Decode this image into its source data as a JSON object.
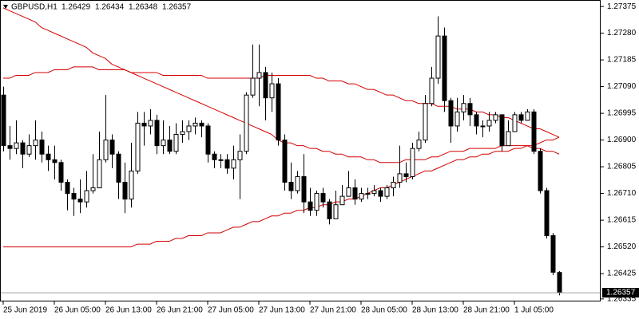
{
  "chart_data": {
    "type": "candlestick",
    "symbol": "GBPUSD,H1",
    "categories": [
      "25 Jun 2019",
      null,
      null,
      null,
      null,
      null,
      null,
      null,
      "26 Jun 05:00",
      null,
      null,
      null,
      null,
      null,
      null,
      null,
      "26 Jun 13:00",
      null,
      null,
      null,
      null,
      null,
      null,
      null,
      "26 Jun 21:00",
      null,
      null,
      null,
      null,
      null,
      null,
      null,
      "27 Jun 05:00",
      null,
      null,
      null,
      null,
      null,
      null,
      null,
      "27 Jun 13:00",
      null,
      null,
      null,
      null,
      null,
      null,
      null,
      "27 Jun 21:00",
      null,
      null,
      null,
      null,
      null,
      null,
      null,
      "28 Jun 05:00",
      null,
      null,
      null,
      null,
      null,
      null,
      null,
      "28 Jun 13:00",
      null,
      null,
      null,
      null,
      null,
      null,
      null,
      "28 Jun 21:00",
      null,
      null,
      null,
      null,
      null,
      null,
      null,
      "1 Jul 05:00",
      null,
      null,
      null,
      null,
      null,
      null,
      null
    ],
    "ohlc": {
      "open": [
        1.2706,
        1.2688,
        1.2687,
        1.2689,
        1.2685,
        1.2688,
        1.269,
        1.2685,
        1.2683,
        1.2682,
        1.2675,
        1.2671,
        1.2669,
        1.2668,
        1.2672,
        1.2673,
        1.2683,
        1.269,
        1.2685,
        1.2675,
        1.2669,
        1.2679,
        1.2696,
        1.2695,
        1.2697,
        1.2688,
        1.269,
        1.2686,
        1.2692,
        1.2693,
        1.2695,
        1.2696,
        1.2695,
        1.2685,
        1.2683,
        1.2683,
        1.268,
        1.2683,
        1.2686,
        1.2706,
        1.2712,
        1.2714,
        1.2705,
        1.271,
        1.269,
        1.2675,
        1.2672,
        1.2677,
        1.2668,
        1.2665,
        1.2671,
        1.2668,
        1.2662,
        1.2667,
        1.267,
        1.2673,
        1.2669,
        1.2671,
        1.2671,
        1.2672,
        1.267,
        1.2673,
        1.2675,
        1.2678,
        1.2677,
        1.2687,
        1.269,
        1.2703,
        1.2712,
        1.2727,
        1.2704,
        1.2695,
        1.27,
        1.2703,
        1.2699,
        1.2695,
        1.2695,
        1.2697,
        1.2699,
        1.2688,
        1.2693,
        1.2699,
        1.2697,
        1.27,
        1.2686,
        1.2672,
        1.2656,
        1.26429
      ],
      "high": [
        1.2709,
        1.2695,
        1.2697,
        1.269,
        1.2692,
        1.2697,
        1.2693,
        1.2688,
        1.2688,
        1.2683,
        1.2676,
        1.2673,
        1.2676,
        1.2679,
        1.2685,
        1.2693,
        1.2706,
        1.2692,
        1.2686,
        1.2682,
        1.2689,
        1.27,
        1.27,
        1.2701,
        1.2699,
        1.2697,
        1.2695,
        1.2696,
        1.2697,
        1.2697,
        1.2698,
        1.2697,
        1.2696,
        1.2686,
        1.2685,
        1.2685,
        1.2688,
        1.2692,
        1.2707,
        1.2724,
        1.2724,
        1.2716,
        1.2714,
        1.2712,
        1.2692,
        1.2682,
        1.2679,
        1.2685,
        1.2673,
        1.2672,
        1.2673,
        1.2669,
        1.2672,
        1.2674,
        1.2679,
        1.2676,
        1.2673,
        1.2673,
        1.2674,
        1.2673,
        1.2674,
        1.2677,
        1.2688,
        1.2682,
        1.2689,
        1.2693,
        1.2706,
        1.2716,
        1.2734,
        1.273,
        1.2705,
        1.2705,
        1.2706,
        1.2705,
        1.27,
        1.2697,
        1.27,
        1.27,
        1.2699,
        1.2697,
        1.27,
        1.27,
        1.2701,
        1.2701,
        1.2687,
        1.2673,
        1.2657,
        1.26434
      ],
      "low": [
        1.2686,
        1.2683,
        1.2685,
        1.268,
        1.2684,
        1.2683,
        1.2682,
        1.2679,
        1.2676,
        1.2672,
        1.2665,
        1.2663,
        1.2664,
        1.2666,
        1.2671,
        1.2673,
        1.2682,
        1.268,
        1.2669,
        1.2664,
        1.2666,
        1.2678,
        1.2688,
        1.2692,
        1.2685,
        1.2685,
        1.2685,
        1.2685,
        1.2689,
        1.269,
        1.2692,
        1.2691,
        1.2682,
        1.268,
        1.268,
        1.2678,
        1.2676,
        1.2669,
        1.2685,
        1.2705,
        1.2702,
        1.2697,
        1.27,
        1.2688,
        1.2672,
        1.2669,
        1.2671,
        1.2664,
        1.2663,
        1.2663,
        1.2666,
        1.266,
        1.2662,
        1.2667,
        1.267,
        1.2667,
        1.2668,
        1.2669,
        1.267,
        1.2668,
        1.2669,
        1.267,
        1.2673,
        1.2675,
        1.2676,
        1.2686,
        1.2689,
        1.2702,
        1.271,
        1.27,
        1.2689,
        1.2693,
        1.2697,
        1.2695,
        1.2692,
        1.2691,
        1.2693,
        1.2696,
        1.2686,
        1.2688,
        1.2693,
        1.2696,
        1.2697,
        1.2685,
        1.2671,
        1.2655,
        1.2642,
        1.26348
      ],
      "close": [
        1.2688,
        1.2687,
        1.2689,
        1.2685,
        1.2688,
        1.269,
        1.2685,
        1.2683,
        1.2682,
        1.2675,
        1.2671,
        1.2669,
        1.2668,
        1.2672,
        1.2673,
        1.2683,
        1.269,
        1.2685,
        1.2675,
        1.2669,
        1.2679,
        1.2696,
        1.2695,
        1.2697,
        1.2688,
        1.269,
        1.2686,
        1.2692,
        1.2693,
        1.2695,
        1.2696,
        1.2695,
        1.2685,
        1.2683,
        1.2683,
        1.268,
        1.2683,
        1.2686,
        1.2706,
        1.2712,
        1.2714,
        1.2705,
        1.271,
        1.269,
        1.2675,
        1.2672,
        1.2677,
        1.2668,
        1.2665,
        1.2671,
        1.2668,
        1.2662,
        1.2667,
        1.267,
        1.2673,
        1.2669,
        1.2671,
        1.2671,
        1.2672,
        1.267,
        1.2673,
        1.2675,
        1.2678,
        1.2677,
        1.2687,
        1.269,
        1.2703,
        1.2712,
        1.2727,
        1.2704,
        1.2695,
        1.27,
        1.2703,
        1.2699,
        1.2695,
        1.2695,
        1.2697,
        1.2699,
        1.2688,
        1.2693,
        1.2699,
        1.2697,
        1.27,
        1.2686,
        1.2672,
        1.2656,
        1.2643,
        1.26357
      ]
    },
    "up_color": "#ffffff",
    "down_color": "#000000",
    "series": [
      {
        "color": "#d40000",
        "values": [
          1.2712,
          1.2712,
          1.2713,
          1.2713,
          1.2713,
          1.2714,
          1.2714,
          1.2714,
          1.2715,
          1.2715,
          1.2715,
          1.2716,
          1.2716,
          1.2716,
          1.2716,
          1.2715,
          1.2715,
          1.2715,
          1.2715,
          1.2715,
          1.2714,
          1.2714,
          1.2714,
          1.2714,
          1.2714,
          1.2713,
          1.2713,
          1.2713,
          1.2713,
          1.2713,
          1.2713,
          1.2713,
          1.2712,
          1.2712,
          1.2712,
          1.2712,
          1.2712,
          1.2712,
          1.2712,
          1.2712,
          1.2712,
          1.2713,
          1.2713,
          1.2713,
          1.2713,
          1.2713,
          1.2713,
          1.2713,
          1.2713,
          1.2712,
          1.2712,
          1.2711,
          1.2711,
          1.2711,
          1.271,
          1.271,
          1.2709,
          1.2708,
          1.2708,
          1.2707,
          1.2706,
          1.2706,
          1.2705,
          1.2704,
          1.2704,
          1.2703,
          1.2703,
          1.2703,
          1.2702,
          1.2702,
          1.2702,
          1.2701,
          1.2701,
          1.2701,
          1.27,
          1.27,
          1.2699,
          1.2699,
          1.2698,
          1.2698,
          1.2697,
          1.2696,
          1.2695,
          1.2694,
          1.2694,
          1.2693,
          1.2692,
          1.2691
        ]
      },
      {
        "color": "#d40000",
        "values": [
          1.2737,
          1.2736,
          1.2735,
          1.2734,
          1.2733,
          1.2732,
          1.273,
          1.2729,
          1.2728,
          1.2727,
          1.2726,
          1.2725,
          1.2724,
          1.2723,
          1.2721,
          1.272,
          1.2719,
          1.2717,
          1.2716,
          1.2715,
          1.2714,
          1.2713,
          1.2712,
          1.2711,
          1.271,
          1.2709,
          1.2708,
          1.2707,
          1.2706,
          1.2705,
          1.2704,
          1.2703,
          1.2702,
          1.2701,
          1.27,
          1.2699,
          1.2698,
          1.2697,
          1.2696,
          1.2695,
          1.2694,
          1.2693,
          1.2692,
          1.269,
          1.2689,
          1.2689,
          1.2688,
          1.2688,
          1.2687,
          1.2687,
          1.2686,
          1.2686,
          1.2685,
          1.2685,
          1.2684,
          1.2684,
          1.2684,
          1.2683,
          1.2683,
          1.2682,
          1.2682,
          1.2682,
          1.2682,
          1.2683,
          1.2683,
          1.2683,
          1.2683,
          1.2684,
          1.2684,
          1.2685,
          1.2686,
          1.2686,
          1.2686,
          1.2687,
          1.2687,
          1.2687,
          1.2687,
          1.2687,
          1.2688,
          1.2688,
          1.2688,
          1.2688,
          1.2688,
          1.2687,
          1.2687,
          1.2686,
          1.2686,
          1.2685
        ]
      },
      {
        "color": "#d40000",
        "values": [
          1.2652,
          1.2652,
          1.2652,
          1.2652,
          1.2652,
          1.2652,
          1.2652,
          1.2652,
          1.2652,
          1.2652,
          1.2652,
          1.2652,
          1.2652,
          1.2652,
          1.2652,
          1.2652,
          1.2652,
          1.2652,
          1.2652,
          1.2652,
          1.2652,
          1.2653,
          1.2653,
          1.2653,
          1.2654,
          1.2654,
          1.2654,
          1.2655,
          1.2655,
          1.2656,
          1.2656,
          1.2656,
          1.2657,
          1.2657,
          1.2657,
          1.2658,
          1.2659,
          1.2659,
          1.266,
          1.2661,
          1.2661,
          1.2662,
          1.2663,
          1.2663,
          1.2664,
          1.2664,
          1.2665,
          1.2665,
          1.2666,
          1.2666,
          1.2667,
          1.2667,
          1.2668,
          1.2668,
          1.2669,
          1.2669,
          1.267,
          1.2671,
          1.2672,
          1.2673,
          1.2673,
          1.2674,
          1.2675,
          1.2676,
          1.2677,
          1.2678,
          1.2679,
          1.2679,
          1.268,
          1.2681,
          1.2682,
          1.2683,
          1.2683,
          1.2684,
          1.2684,
          1.2685,
          1.2685,
          1.2686,
          1.2686,
          1.2686,
          1.2687,
          1.2687,
          1.2688,
          1.2688,
          1.2689,
          1.269,
          1.269,
          1.2691
        ]
      }
    ],
    "ylim": [
      1.26326,
      1.27398
    ],
    "yticks": [
      1.27375,
      {
        "value": 1.2728,
        "label": "1.27280"
      },
      1.27185,
      {
        "value": 1.2709,
        "label": "1.27090"
      },
      1.26995,
      {
        "value": 1.269,
        "label": "1.26900"
      },
      1.26805,
      {
        "value": 1.2671,
        "label": "1.26710"
      },
      1.26615,
      {
        "value": 1.2652,
        "label": "1.26520"
      },
      1.26425,
      1.26335
    ],
    "grid": false
  }
}
